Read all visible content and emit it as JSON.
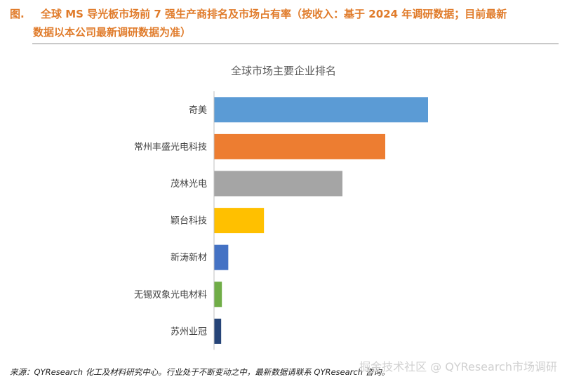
{
  "figure": {
    "label": "图.",
    "title_line1": "全球 MS 导光板市场前 7 强生产商排名及市场占有率（按收入：基于 2024 年调研数据；目前最新",
    "title_line2": "数据以本公司最新调研数据为准）"
  },
  "chart_data": {
    "type": "bar",
    "orientation": "horizontal",
    "title": "全球市场主要企业排名",
    "categories": [
      "奇美",
      "常州丰盛光电科技",
      "茂林光电",
      "颖台科技",
      "新涛新材",
      "无锡双象光电材料",
      "苏州业冠"
    ],
    "values": [
      30.0,
      24.0,
      18.0,
      7.0,
      2.0,
      1.1,
      1.0
    ],
    "colors": [
      "#5b9bd5",
      "#ed7d31",
      "#a5a5a5",
      "#ffc000",
      "#4472c4",
      "#70ad47",
      "#264478"
    ],
    "grid": false,
    "legend": "none",
    "xlim": [
      0,
      30
    ]
  },
  "footer": {
    "source": "来源：QYResearch 化工及材料研究中心。行业处于不断变动之中，最新数据请联系 QYResearch 咨询。",
    "watermark": "掘金技术社区 @ QYResearch市场调研"
  }
}
